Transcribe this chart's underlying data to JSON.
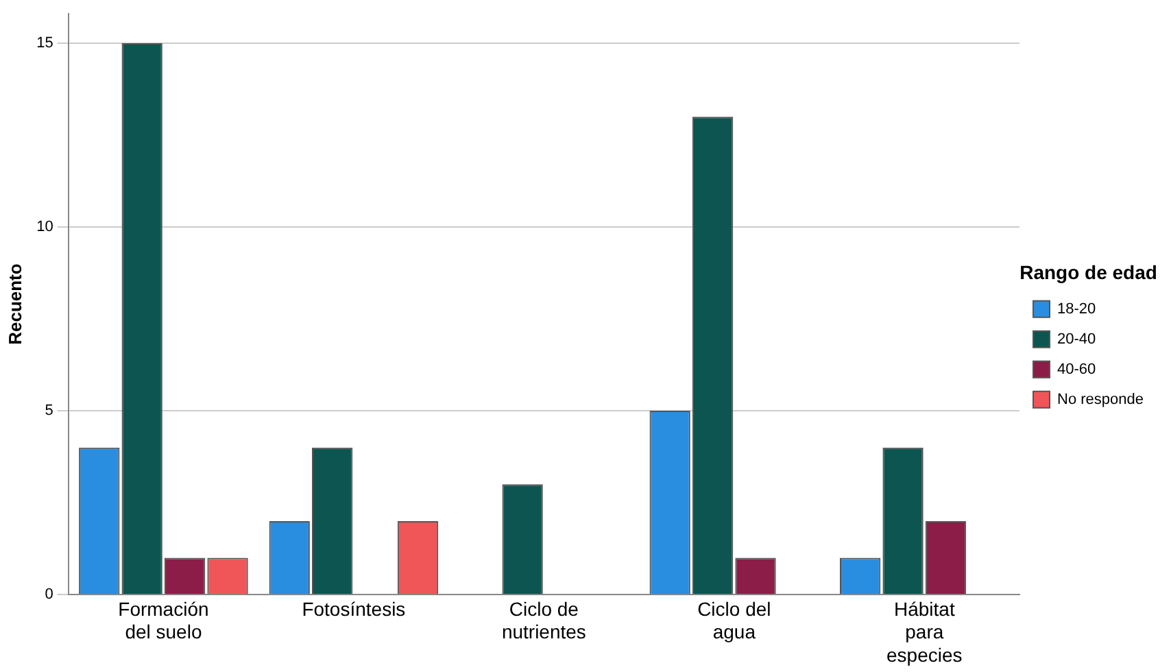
{
  "chart_data": {
    "type": "bar",
    "ylabel": "Recuento",
    "legend_title": "Rango de edad",
    "legend": "right",
    "categories": [
      "Formación del suelo",
      "Fotosíntesis",
      "Ciclo de nutrientes",
      "Ciclo del agua",
      "Hábitat para especies"
    ],
    "series": [
      {
        "name": "18-20",
        "color": "#2a8ee0",
        "values": [
          4,
          2,
          null,
          5,
          1
        ]
      },
      {
        "name": "20-40",
        "color": "#0d5550",
        "values": [
          15,
          4,
          3,
          13,
          4
        ]
      },
      {
        "name": "40-60",
        "color": "#8c1c48",
        "values": [
          1,
          null,
          null,
          1,
          2
        ]
      },
      {
        "name": "No responde",
        "color": "#f05558",
        "values": [
          1,
          2,
          null,
          null,
          null
        ]
      }
    ],
    "ylim": [
      0,
      15.8
    ],
    "yticks": [
      0,
      5,
      10,
      15
    ],
    "grid": "y"
  }
}
